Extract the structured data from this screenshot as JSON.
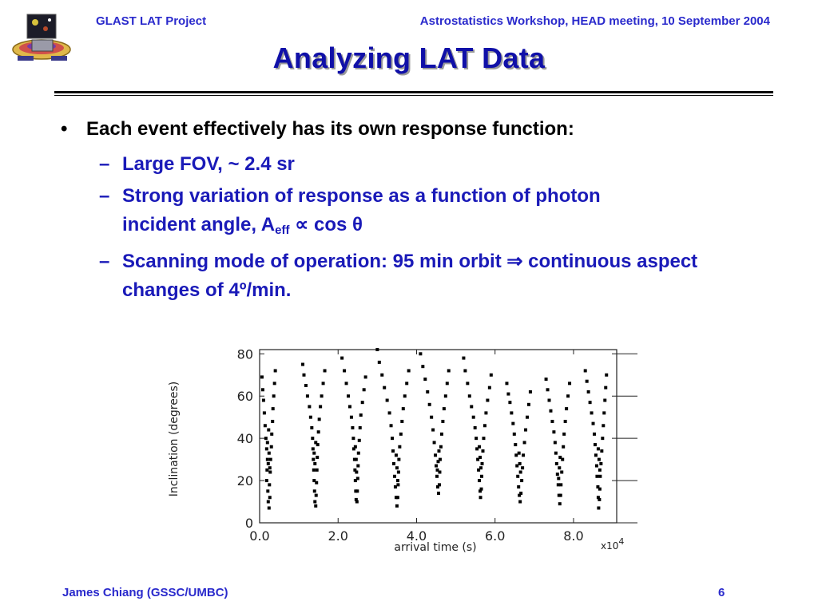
{
  "header": {
    "project": "GLAST LAT Project",
    "event": "Astrostatistics Workshop, HEAD meeting, 10 September 2004"
  },
  "slide": {
    "title": "Analyzing LAT Data",
    "bullet_symbol": "•",
    "dash_symbol": "–",
    "bullet": "Each event effectively has its own response function:",
    "sub1": "Large FOV, ~ 2.4 sr",
    "sub2_line1": "Strong variation of response as a function of photon",
    "sub2_line2_pre": "incident angle, A",
    "sub2_subscript": "eff",
    "sub2_line2_post": " ∝ cos θ",
    "sub3": "Scanning mode of operation: 95 min orbit ⇒ continuous aspect changes of 4º/min."
  },
  "colors": {
    "header_text": "#2a2acc",
    "title_text": "#1010a8",
    "sub_text": "#1a1ab8"
  },
  "chart_data": {
    "type": "scatter",
    "title": "",
    "xlabel": "arrival time (s)",
    "ylabel": "Inclination (degrees)",
    "x_multiplier_label": "x10",
    "x_multiplier_exp": "4",
    "xlim": [
      0,
      9.1
    ],
    "ylim": [
      0,
      82
    ],
    "x_tick_values": [
      0,
      2,
      4,
      6,
      8
    ],
    "x_tick_labels": [
      "0.0",
      "2.0",
      "4.0",
      "6.0",
      "8.0"
    ],
    "y_tick_values": [
      0,
      20,
      40,
      60,
      80
    ],
    "y_tick_labels": [
      "0",
      "20",
      "40",
      "60",
      "80"
    ],
    "grid": false,
    "series": [
      {
        "points": [
          [
            0.06,
            69
          ],
          [
            0.08,
            63
          ],
          [
            0.1,
            58
          ],
          [
            0.12,
            52
          ],
          [
            0.14,
            46
          ],
          [
            0.16,
            40
          ],
          [
            0.18,
            35
          ],
          [
            0.2,
            30
          ],
          [
            0.19,
            25
          ],
          [
            0.18,
            20
          ],
          [
            0.21,
            15
          ],
          [
            0.22,
            10
          ],
          [
            0.24,
            7
          ],
          [
            0.26,
            12
          ],
          [
            0.25,
            18
          ],
          [
            0.27,
            24
          ],
          [
            0.28,
            30
          ],
          [
            0.3,
            36
          ],
          [
            0.31,
            42
          ],
          [
            0.33,
            48
          ],
          [
            0.34,
            54
          ],
          [
            0.36,
            60
          ],
          [
            0.38,
            66
          ],
          [
            0.4,
            72
          ],
          [
            0.22,
            28
          ],
          [
            0.24,
            33
          ],
          [
            0.2,
            38
          ],
          [
            0.26,
            26
          ],
          [
            0.23,
            44
          ],
          [
            1.1,
            75
          ],
          [
            1.13,
            70
          ],
          [
            1.18,
            65
          ],
          [
            1.22,
            60
          ],
          [
            1.27,
            55
          ],
          [
            1.3,
            50
          ],
          [
            1.33,
            45
          ],
          [
            1.35,
            40
          ],
          [
            1.36,
            35
          ],
          [
            1.37,
            30
          ],
          [
            1.38,
            25
          ],
          [
            1.39,
            20
          ],
          [
            1.4,
            15
          ],
          [
            1.41,
            10
          ],
          [
            1.43,
            8
          ],
          [
            1.44,
            13
          ],
          [
            1.45,
            19
          ],
          [
            1.46,
            25
          ],
          [
            1.47,
            31
          ],
          [
            1.48,
            37
          ],
          [
            1.5,
            43
          ],
          [
            1.52,
            49
          ],
          [
            1.55,
            55
          ],
          [
            1.58,
            60
          ],
          [
            1.62,
            66
          ],
          [
            1.66,
            72
          ],
          [
            1.41,
            28
          ],
          [
            1.39,
            33
          ],
          [
            1.43,
            38
          ],
          [
            2.1,
            78
          ],
          [
            2.16,
            72
          ],
          [
            2.21,
            66
          ],
          [
            2.26,
            60
          ],
          [
            2.3,
            55
          ],
          [
            2.34,
            50
          ],
          [
            2.37,
            45
          ],
          [
            2.39,
            40
          ],
          [
            2.4,
            35
          ],
          [
            2.42,
            30
          ],
          [
            2.43,
            25
          ],
          [
            2.44,
            20
          ],
          [
            2.45,
            15
          ],
          [
            2.46,
            11
          ],
          [
            2.48,
            10
          ],
          [
            2.49,
            15
          ],
          [
            2.5,
            21
          ],
          [
            2.51,
            27
          ],
          [
            2.52,
            33
          ],
          [
            2.54,
            39
          ],
          [
            2.56,
            45
          ],
          [
            2.58,
            51
          ],
          [
            2.62,
            57
          ],
          [
            2.66,
            63
          ],
          [
            2.7,
            69
          ],
          [
            2.46,
            30
          ],
          [
            2.44,
            36
          ],
          [
            2.47,
            24
          ],
          [
            3.0,
            82
          ],
          [
            3.05,
            76
          ],
          [
            3.12,
            70
          ],
          [
            3.18,
            64
          ],
          [
            3.25,
            58
          ],
          [
            3.31,
            52
          ],
          [
            3.35,
            46
          ],
          [
            3.38,
            40
          ],
          [
            3.4,
            34
          ],
          [
            3.42,
            28
          ],
          [
            3.44,
            22
          ],
          [
            3.46,
            17
          ],
          [
            3.48,
            12
          ],
          [
            3.5,
            8
          ],
          [
            3.52,
            12
          ],
          [
            3.53,
            18
          ],
          [
            3.54,
            24
          ],
          [
            3.55,
            30
          ],
          [
            3.57,
            36
          ],
          [
            3.6,
            42
          ],
          [
            3.63,
            48
          ],
          [
            3.66,
            54
          ],
          [
            3.7,
            60
          ],
          [
            3.75,
            66
          ],
          [
            3.8,
            72
          ],
          [
            3.5,
            26
          ],
          [
            3.48,
            32
          ],
          [
            3.52,
            20
          ],
          [
            4.1,
            80
          ],
          [
            4.16,
            74
          ],
          [
            4.22,
            68
          ],
          [
            4.28,
            62
          ],
          [
            4.33,
            56
          ],
          [
            4.38,
            50
          ],
          [
            4.42,
            44
          ],
          [
            4.45,
            38
          ],
          [
            4.48,
            32
          ],
          [
            4.5,
            27
          ],
          [
            4.52,
            22
          ],
          [
            4.54,
            17
          ],
          [
            4.56,
            14
          ],
          [
            4.58,
            18
          ],
          [
            4.59,
            24
          ],
          [
            4.6,
            30
          ],
          [
            4.62,
            36
          ],
          [
            4.64,
            42
          ],
          [
            4.67,
            48
          ],
          [
            4.7,
            54
          ],
          [
            4.74,
            60
          ],
          [
            4.78,
            66
          ],
          [
            4.82,
            72
          ],
          [
            4.55,
            29
          ],
          [
            4.57,
            34
          ],
          [
            4.53,
            25
          ],
          [
            5.2,
            78
          ],
          [
            5.24,
            72
          ],
          [
            5.3,
            66
          ],
          [
            5.35,
            60
          ],
          [
            5.4,
            55
          ],
          [
            5.45,
            50
          ],
          [
            5.49,
            45
          ],
          [
            5.52,
            40
          ],
          [
            5.54,
            35
          ],
          [
            5.56,
            30
          ],
          [
            5.58,
            25
          ],
          [
            5.6,
            20
          ],
          [
            5.62,
            15
          ],
          [
            5.63,
            12
          ],
          [
            5.65,
            16
          ],
          [
            5.66,
            22
          ],
          [
            5.67,
            28
          ],
          [
            5.69,
            34
          ],
          [
            5.71,
            40
          ],
          [
            5.74,
            46
          ],
          [
            5.77,
            52
          ],
          [
            5.81,
            58
          ],
          [
            5.86,
            64
          ],
          [
            5.9,
            70
          ],
          [
            5.62,
            31
          ],
          [
            5.6,
            36
          ],
          [
            5.64,
            26
          ],
          [
            6.3,
            66
          ],
          [
            6.34,
            61
          ],
          [
            6.38,
            57
          ],
          [
            6.42,
            52
          ],
          [
            6.46,
            47
          ],
          [
            6.49,
            42
          ],
          [
            6.52,
            37
          ],
          [
            6.54,
            32
          ],
          [
            6.56,
            27
          ],
          [
            6.58,
            22
          ],
          [
            6.6,
            17
          ],
          [
            6.62,
            13
          ],
          [
            6.64,
            10
          ],
          [
            6.66,
            14
          ],
          [
            6.68,
            20
          ],
          [
            6.7,
            26
          ],
          [
            6.72,
            32
          ],
          [
            6.75,
            38
          ],
          [
            6.78,
            44
          ],
          [
            6.82,
            50
          ],
          [
            6.86,
            56
          ],
          [
            6.9,
            62
          ],
          [
            6.63,
            28
          ],
          [
            6.61,
            33
          ],
          [
            6.65,
            24
          ],
          [
            7.3,
            68
          ],
          [
            7.34,
            63
          ],
          [
            7.38,
            58
          ],
          [
            7.42,
            53
          ],
          [
            7.46,
            48
          ],
          [
            7.5,
            43
          ],
          [
            7.53,
            38
          ],
          [
            7.55,
            33
          ],
          [
            7.57,
            28
          ],
          [
            7.59,
            23
          ],
          [
            7.61,
            18
          ],
          [
            7.63,
            13
          ],
          [
            7.65,
            9
          ],
          [
            7.67,
            13
          ],
          [
            7.68,
            18
          ],
          [
            7.7,
            24
          ],
          [
            7.72,
            30
          ],
          [
            7.74,
            36
          ],
          [
            7.76,
            42
          ],
          [
            7.79,
            48
          ],
          [
            7.82,
            54
          ],
          [
            7.86,
            60
          ],
          [
            7.9,
            66
          ],
          [
            7.64,
            26
          ],
          [
            7.66,
            31
          ],
          [
            7.62,
            21
          ],
          [
            8.3,
            72
          ],
          [
            8.34,
            67
          ],
          [
            8.38,
            62
          ],
          [
            8.42,
            57
          ],
          [
            8.46,
            52
          ],
          [
            8.5,
            47
          ],
          [
            8.53,
            42
          ],
          [
            8.55,
            37
          ],
          [
            8.57,
            32
          ],
          [
            8.59,
            27
          ],
          [
            8.6,
            22
          ],
          [
            8.62,
            17
          ],
          [
            8.63,
            12
          ],
          [
            8.64,
            7
          ],
          [
            8.66,
            11
          ],
          [
            8.67,
            16
          ],
          [
            8.68,
            22
          ],
          [
            8.7,
            28
          ],
          [
            8.72,
            34
          ],
          [
            8.74,
            40
          ],
          [
            8.76,
            46
          ],
          [
            8.78,
            52
          ],
          [
            8.8,
            58
          ],
          [
            8.82,
            64
          ],
          [
            8.84,
            70
          ],
          [
            8.65,
            30
          ],
          [
            8.63,
            35
          ],
          [
            8.67,
            25
          ]
        ]
      }
    ]
  },
  "footer": {
    "author": "James Chiang (GSSC/UMBC)",
    "page": "6"
  }
}
